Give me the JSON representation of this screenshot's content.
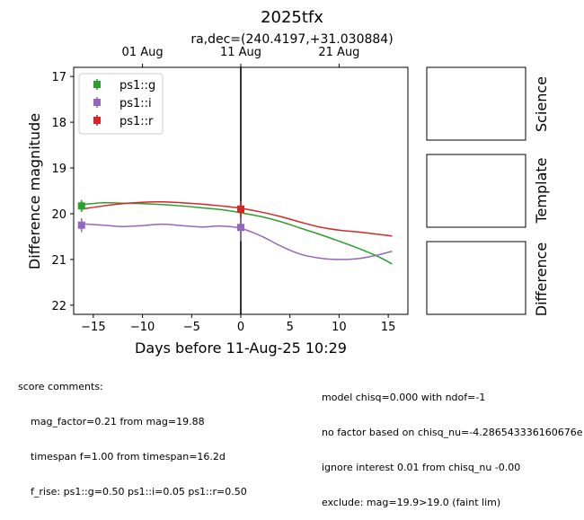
{
  "chart_data": {
    "type": "line",
    "title": "2025tfx",
    "subtitle": "ra,dec=(240.4197,+31.030884)",
    "xlabel": "Days before 11-Aug-25 10:29",
    "ylabel": "Difference magnitude",
    "xlim": [
      -17.0,
      17.0
    ],
    "ylim": [
      22.2,
      16.8
    ],
    "y_inverted": true,
    "xticks": [
      -15,
      -10,
      -5,
      0,
      5,
      10,
      15
    ],
    "xtick_labels": [
      "−15",
      "−10",
      "−5",
      "0",
      "5",
      "10",
      "15"
    ],
    "yticks": [
      17,
      18,
      19,
      20,
      21,
      22
    ],
    "top_axis_ticks": [
      {
        "x": -10.0,
        "label": "01 Aug"
      },
      {
        "x": 0.0,
        "label": "11 Aug"
      },
      {
        "x": 10.0,
        "label": "21 Aug"
      }
    ],
    "vline_x": 0.0,
    "legend_position": "upper-left",
    "grid": false,
    "series": [
      {
        "name": "ps1::g",
        "color": "#2ca02c",
        "points": [
          {
            "x": -16.2,
            "y": 19.83,
            "err": 0.13
          },
          {
            "x": 0.0,
            "y": 19.9,
            "err": 0.15
          }
        ],
        "curve_x": [
          -16.2,
          -14,
          -12,
          -10,
          -8,
          -6,
          -4,
          -2,
          0,
          2,
          4,
          6,
          8,
          10,
          12,
          14,
          15.4
        ],
        "curve_y": [
          19.8,
          19.76,
          19.77,
          19.78,
          19.8,
          19.83,
          19.87,
          19.91,
          19.98,
          20.06,
          20.17,
          20.31,
          20.45,
          20.6,
          20.76,
          20.94,
          21.1
        ]
      },
      {
        "name": "ps1::i",
        "color": "#9467bd",
        "points": [
          {
            "x": -16.2,
            "y": 20.25,
            "err": 0.15
          },
          {
            "x": 0.0,
            "y": 20.3,
            "err": 0.3
          }
        ],
        "curve_x": [
          -16.2,
          -14,
          -12,
          -10,
          -8,
          -6,
          -4,
          -2,
          0,
          2,
          4,
          6,
          8,
          10,
          12,
          14,
          15.4
        ],
        "curve_y": [
          20.22,
          20.25,
          20.28,
          20.26,
          20.23,
          20.26,
          20.29,
          20.27,
          20.32,
          20.48,
          20.7,
          20.88,
          20.97,
          21.0,
          20.98,
          20.9,
          20.82
        ]
      },
      {
        "name": "ps1::r",
        "color": "#d62728",
        "points": [
          {
            "x": 0.0,
            "y": 19.9,
            "err": 0.18
          }
        ],
        "curve_x": [
          -16.2,
          -14,
          -12,
          -10,
          -8,
          -6,
          -4,
          -2,
          0,
          2,
          4,
          6,
          8,
          10,
          12,
          14,
          15.4
        ],
        "curve_y": [
          19.9,
          19.83,
          19.78,
          19.75,
          19.74,
          19.76,
          19.79,
          19.83,
          19.88,
          19.96,
          20.06,
          20.18,
          20.29,
          20.36,
          20.4,
          20.45,
          20.49
        ]
      }
    ],
    "side_panels": [
      "Science",
      "Template",
      "Difference"
    ]
  },
  "comments": {
    "left": [
      "score comments:",
      "    mag_factor=0.21 from mag=19.88",
      "    timespan f=1.00 from timespan=16.2d",
      "    f_rise: ps1::g=0.50 ps1::i=0.05 ps1::r=0.50"
    ],
    "right": [
      "model chisq=0.000 with ndof=-1",
      "no factor based on chisq_nu=-4.286543336160676e",
      "ignore interest 0.01 from chisq_nu -0.00",
      "exclude: mag=19.9>19.0 (faint lim)"
    ]
  }
}
